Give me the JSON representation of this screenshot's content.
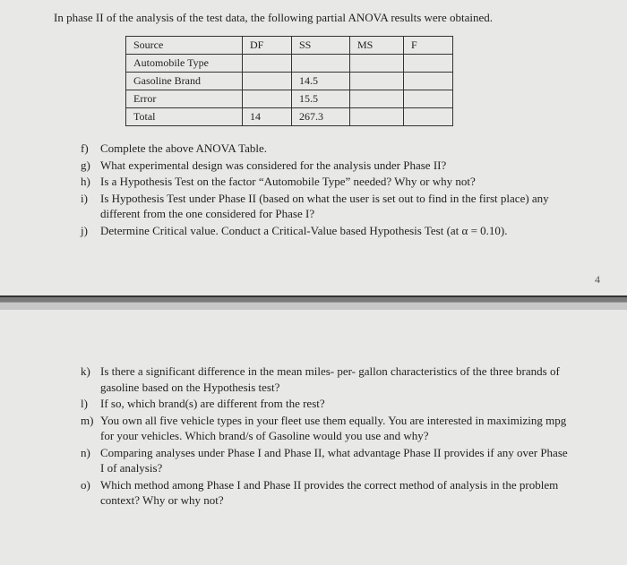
{
  "intro": "In phase II of the analysis of the test data, the following partial ANOVA results were obtained.",
  "table": {
    "headers": {
      "source": "Source",
      "df": "DF",
      "ss": "SS",
      "ms": "MS",
      "f": "F"
    },
    "rows": [
      {
        "source": "Automobile Type",
        "df": "",
        "ss": "",
        "ms": "",
        "f": ""
      },
      {
        "source": "Gasoline Brand",
        "df": "",
        "ss": "14.5",
        "ms": "",
        "f": ""
      },
      {
        "source": "Error",
        "df": "",
        "ss": "15.5",
        "ms": "",
        "f": ""
      },
      {
        "source": "Total",
        "df": "14",
        "ss": "267.3",
        "ms": "",
        "f": ""
      }
    ]
  },
  "questions_top": [
    {
      "letter": "f)",
      "text": "Complete the above ANOVA Table."
    },
    {
      "letter": "g)",
      "text": "What experimental design was considered for the analysis under Phase II?"
    },
    {
      "letter": "h)",
      "text": "Is a Hypothesis Test on the factor “Automobile Type” needed? Why or why not?"
    },
    {
      "letter": "i)",
      "text": "Is Hypothesis Test under Phase II (based on what the user is set out to find in the first place) any different from the one considered for Phase I?"
    },
    {
      "letter": "j)",
      "text": "Determine Critical value. Conduct a Critical-Value based Hypothesis Test (at α = 0.10)."
    }
  ],
  "page_number": "4",
  "questions_bottom": [
    {
      "letter": "k)",
      "text": "Is there a significant difference in the mean miles- per- gallon characteristics of the three brands of gasoline based on the Hypothesis test?"
    },
    {
      "letter": "l)",
      "text": "If so, which brand(s) are different from the rest?"
    },
    {
      "letter": "m)",
      "text": "You own all five vehicle types in your fleet use them equally. You are interested in maximizing mpg for your vehicles. Which brand/s of Gasoline would you use and why?"
    },
    {
      "letter": "n)",
      "text": "Comparing analyses under Phase I and Phase II, what advantage Phase II provides if any over Phase I of analysis?"
    },
    {
      "letter": "o)",
      "text": "Which method among Phase I and Phase II provides the correct method of analysis in the problem context?  Why or why not?"
    }
  ]
}
